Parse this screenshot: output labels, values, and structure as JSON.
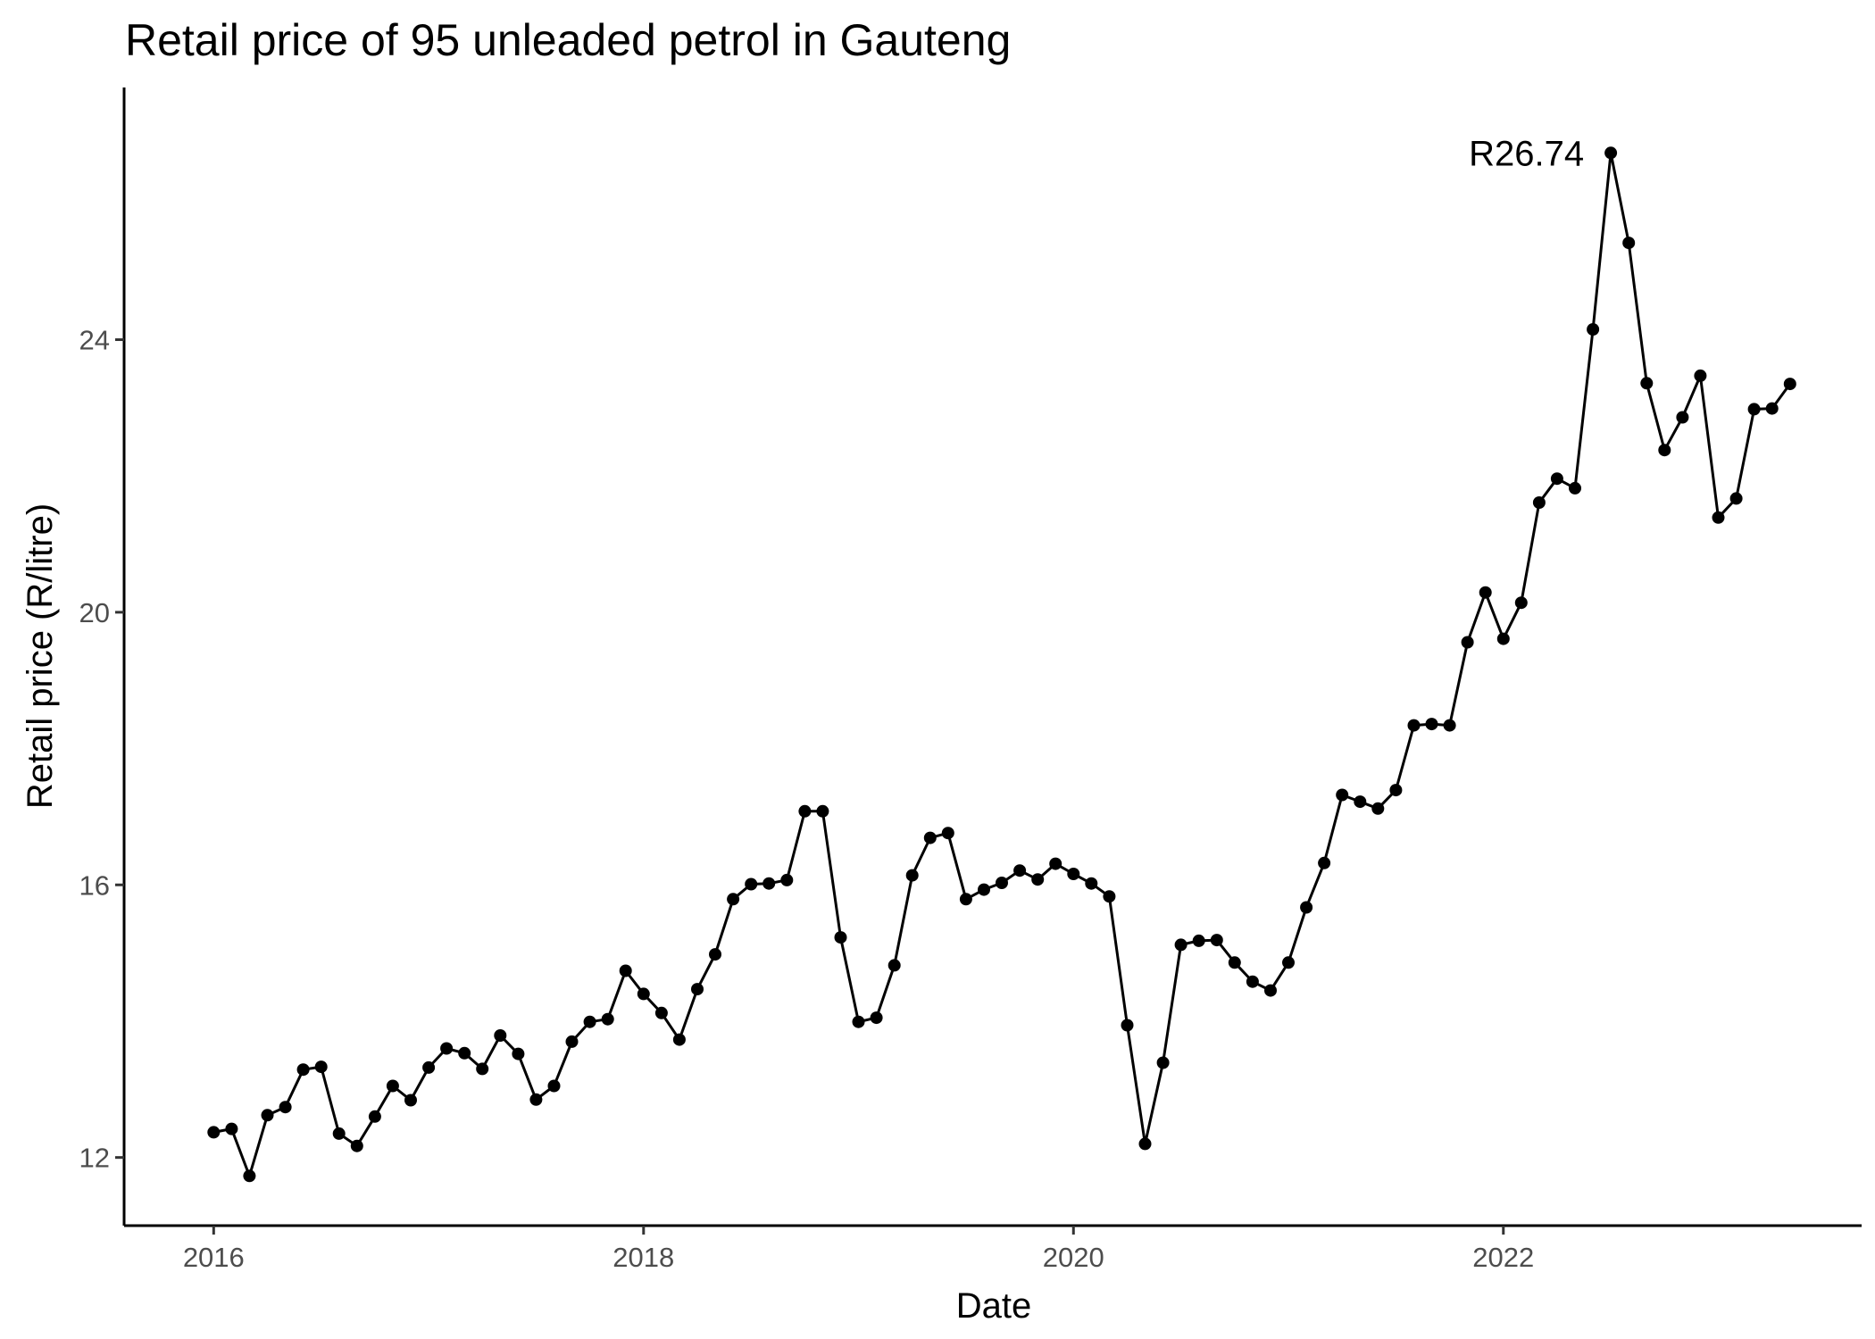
{
  "chart_data": {
    "type": "line",
    "title": "Retail price of 95 unleaded petrol in Gauteng",
    "xlabel": "Date",
    "ylabel": "Retail price (R/litre)",
    "x_ticks": [
      "2016",
      "2018",
      "2020",
      "2022"
    ],
    "y_ticks": [
      12,
      16,
      20,
      24
    ],
    "xlim": [
      "2015-08",
      "2023-09"
    ],
    "ylim": [
      11.0,
      27.7
    ],
    "grid": false,
    "legend": "none",
    "line_color": "#000000",
    "point_color": "#000000",
    "annotation": {
      "text": "R26.74",
      "x": "2022-07",
      "y": 26.74
    },
    "series": [
      {
        "x": [
          "2016-01",
          "2016-02",
          "2016-03",
          "2016-04",
          "2016-05",
          "2016-06",
          "2016-07",
          "2016-08",
          "2016-09",
          "2016-10",
          "2016-11",
          "2016-12",
          "2017-01",
          "2017-02",
          "2017-03",
          "2017-04",
          "2017-05",
          "2017-06",
          "2017-07",
          "2017-08",
          "2017-09",
          "2017-10",
          "2017-11",
          "2017-12",
          "2018-01",
          "2018-02",
          "2018-03",
          "2018-04",
          "2018-05",
          "2018-06",
          "2018-07",
          "2018-08",
          "2018-09",
          "2018-10",
          "2018-11",
          "2018-12",
          "2019-01",
          "2019-02",
          "2019-03",
          "2019-04",
          "2019-05",
          "2019-06",
          "2019-07",
          "2019-08",
          "2019-09",
          "2019-10",
          "2019-11",
          "2019-12",
          "2020-01",
          "2020-02",
          "2020-03",
          "2020-04",
          "2020-05",
          "2020-06",
          "2020-07",
          "2020-08",
          "2020-09",
          "2020-10",
          "2020-11",
          "2020-12",
          "2021-01",
          "2021-02",
          "2021-03",
          "2021-04",
          "2021-05",
          "2021-06",
          "2021-07",
          "2021-08",
          "2021-09",
          "2021-10",
          "2021-11",
          "2021-12",
          "2022-01",
          "2022-02",
          "2022-03",
          "2022-04",
          "2022-05",
          "2022-06",
          "2022-07",
          "2022-08",
          "2022-09",
          "2022-10",
          "2022-11",
          "2022-12",
          "2023-01",
          "2023-02",
          "2023-03",
          "2023-04",
          "2023-05"
        ],
        "values": [
          12.37,
          12.42,
          11.73,
          12.62,
          12.74,
          13.29,
          13.33,
          12.35,
          12.17,
          12.6,
          13.05,
          12.84,
          13.32,
          13.6,
          13.53,
          13.3,
          13.79,
          13.52,
          12.85,
          13.05,
          13.7,
          13.99,
          14.03,
          14.74,
          14.4,
          14.12,
          13.73,
          14.47,
          14.98,
          15.79,
          16.01,
          16.02,
          16.07,
          17.08,
          17.08,
          15.23,
          13.99,
          14.05,
          14.82,
          16.14,
          16.69,
          16.76,
          15.79,
          15.93,
          16.03,
          16.21,
          16.08,
          16.31,
          16.16,
          16.02,
          15.83,
          13.94,
          12.2,
          13.39,
          15.12,
          15.18,
          15.19,
          14.86,
          14.58,
          14.45,
          14.86,
          15.67,
          16.32,
          17.32,
          17.22,
          17.12,
          17.39,
          18.34,
          18.36,
          18.34,
          19.56,
          20.29,
          19.61,
          20.14,
          21.61,
          21.96,
          21.82,
          24.15,
          26.74,
          25.42,
          23.36,
          22.38,
          22.86,
          23.47,
          21.39,
          21.67,
          22.98,
          22.99,
          23.35
        ]
      }
    ]
  }
}
